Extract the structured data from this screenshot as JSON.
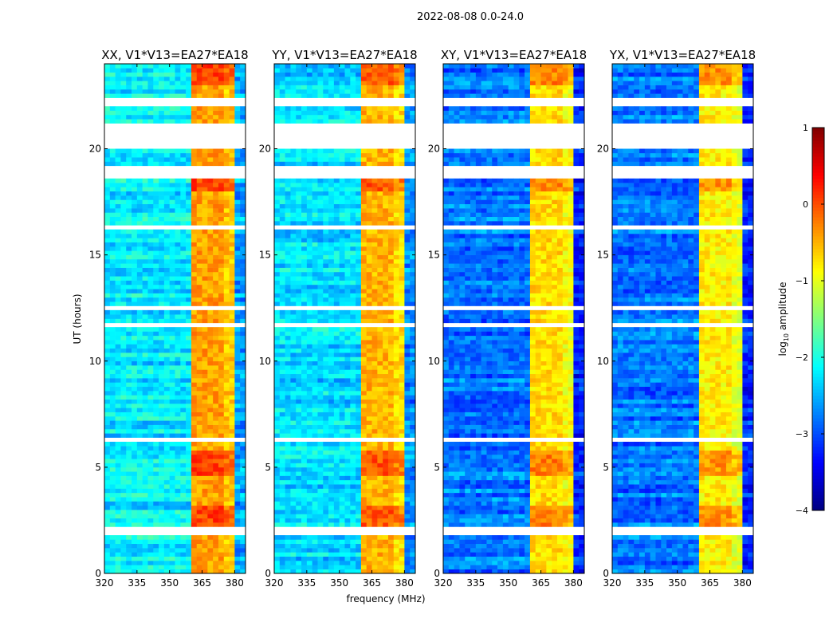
{
  "chart_data": {
    "type": "heatmap",
    "title": "2022-08-08 0.0-24.0",
    "xlabel": "frequency (MHz)",
    "ylabel": "UT (hours)",
    "xlim": [
      320,
      385
    ],
    "ylim": [
      0,
      24
    ],
    "xticks": [
      320,
      335,
      350,
      365,
      380
    ],
    "yticks": [
      0,
      5,
      10,
      15,
      20
    ],
    "panels": [
      {
        "title": "XX, V1*V13=EA27*EA18",
        "background_level": -2.2,
        "band_level": -0.4
      },
      {
        "title": "YY, V1*V13=EA27*EA18",
        "background_level": -2.3,
        "band_level": -0.5
      },
      {
        "title": "XY, V1*V13=EA27*EA18",
        "background_level": -2.8,
        "band_level": -0.7
      },
      {
        "title": "YX, V1*V13=EA27*EA18",
        "background_level": -2.8,
        "band_level": -0.8
      }
    ],
    "bright_subbands_mhz": [
      [
        361,
        366
      ],
      [
        366,
        371
      ],
      [
        371,
        376
      ],
      [
        376,
        381
      ]
    ],
    "flagged_hours": [
      [
        1.9,
        2.15
      ],
      [
        6.3,
        6.45
      ],
      [
        11.5,
        11.8
      ],
      [
        12.4,
        12.6
      ],
      [
        16.1,
        16.3
      ],
      [
        18.5,
        19.2
      ],
      [
        20.0,
        21.1
      ],
      [
        22.0,
        22.3
      ]
    ],
    "high_amplitude_hours": [
      [
        2.3,
        3.3
      ],
      [
        4.6,
        5.8
      ],
      [
        18.0,
        18.6
      ],
      [
        23.0,
        24.0
      ]
    ],
    "colorbar": {
      "label": "log10 amplitude",
      "label_main": "log",
      "label_sub": "10",
      "label_rest": " amplitude",
      "range": [
        -4,
        1
      ],
      "ticks": [
        1,
        0,
        -1,
        -2,
        -3,
        -4
      ],
      "tick_labels": [
        "1",
        "0",
        "−1",
        "−2",
        "−3",
        "−4"
      ],
      "colormap": "jet"
    }
  }
}
